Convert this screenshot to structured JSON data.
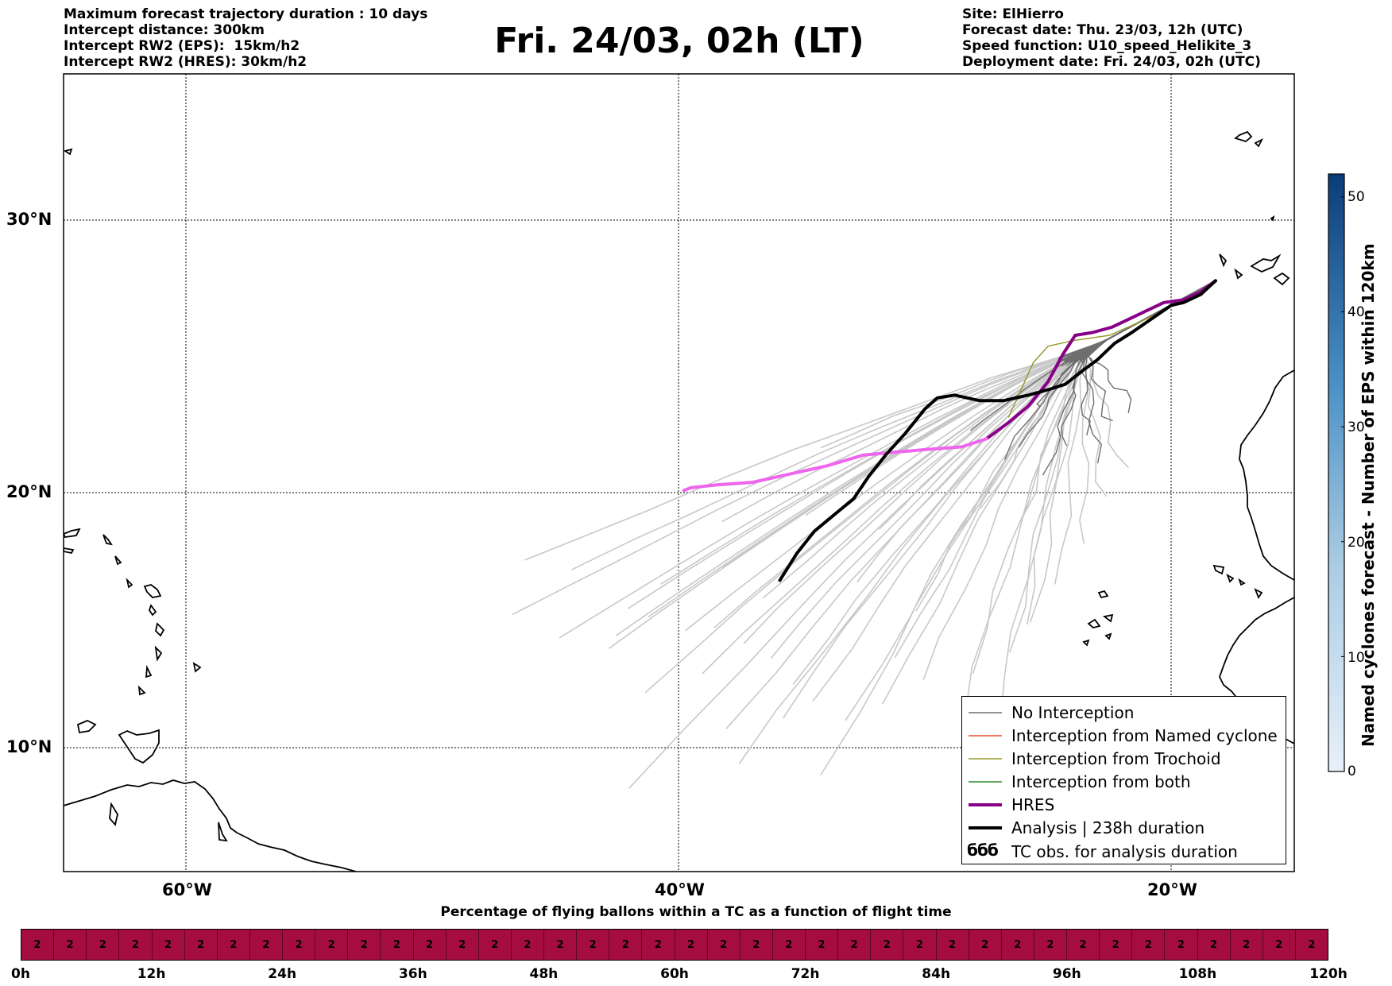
{
  "header": {
    "left_lines": [
      "Maximum forecast trajectory duration : 10 days",
      "Intercept distance: 300km",
      "Intercept RW2 (EPS):  15km/h2",
      "Intercept RW2 (HRES): 30km/h2"
    ],
    "title": "Fri. 24/03, 02h (LT)",
    "right_lines": [
      "Site: ElHierro",
      "Forecast date: Thu. 23/03, 12h (UTC)",
      "Speed function: U10_speed_Helikite_3",
      "Deployment date: Fri. 24/03, 02h (UTC)"
    ]
  },
  "map": {
    "lat_labels": [
      "30°N",
      "20°N",
      "10°N"
    ],
    "lon_labels": [
      "60°W",
      "40°W",
      "20°W"
    ],
    "lon_range": [
      -65,
      -15
    ],
    "lat_range": [
      5.5,
      34.8
    ],
    "colors": {
      "ensemble_light": "#c8c8c8",
      "ensemble_dark": "#6e6e6e",
      "trochoid": "#9a9a30",
      "hres_light": "#ee66ee",
      "hres_dark": "#880088",
      "analysis": "#000000"
    },
    "analysis_track": [
      [
        -18.2,
        27.2
      ],
      [
        -18.8,
        26.7
      ],
      [
        -19.5,
        26.4
      ],
      [
        -20.0,
        26.3
      ],
      [
        -20.8,
        25.8
      ],
      [
        -21.6,
        25.3
      ],
      [
        -22.3,
        24.9
      ],
      [
        -23.0,
        24.3
      ],
      [
        -23.6,
        23.9
      ],
      [
        -24.3,
        23.4
      ],
      [
        -25.0,
        23.2
      ],
      [
        -25.8,
        23.0
      ],
      [
        -26.8,
        22.8
      ],
      [
        -27.8,
        22.8
      ],
      [
        -28.8,
        23.0
      ],
      [
        -29.5,
        22.9
      ],
      [
        -30.0,
        22.5
      ],
      [
        -30.8,
        21.6
      ],
      [
        -31.6,
        20.8
      ],
      [
        -32.3,
        20.0
      ],
      [
        -32.9,
        19.2
      ],
      [
        -33.7,
        18.6
      ],
      [
        -34.5,
        18.0
      ],
      [
        -35.2,
        17.2
      ],
      [
        -35.9,
        16.2
      ]
    ],
    "hres_track": [
      [
        -18.2,
        27.2
      ],
      [
        -18.8,
        26.8
      ],
      [
        -19.5,
        26.5
      ],
      [
        -20.3,
        26.4
      ],
      [
        -21.0,
        26.1
      ],
      [
        -21.7,
        25.8
      ],
      [
        -22.4,
        25.5
      ],
      [
        -23.2,
        25.3
      ],
      [
        -23.9,
        25.2
      ],
      [
        -24.4,
        24.5
      ],
      [
        -25.0,
        23.5
      ],
      [
        -25.8,
        22.6
      ],
      [
        -26.6,
        22.0
      ],
      [
        -27.5,
        21.4
      ],
      [
        -28.5,
        21.1
      ],
      [
        -30.0,
        21.0
      ],
      [
        -31.3,
        20.9
      ],
      [
        -32.5,
        20.8
      ],
      [
        -34.0,
        20.4
      ],
      [
        -35.5,
        20.1
      ],
      [
        -37.0,
        19.8
      ],
      [
        -38.5,
        19.7
      ],
      [
        -39.5,
        19.6
      ],
      [
        -39.8,
        19.5
      ]
    ],
    "ensemble_ends": [
      [
        -46.5,
        16.8
      ],
      [
        -44.5,
        16.5
      ],
      [
        -42.0,
        15.2
      ],
      [
        -41.0,
        15.0
      ],
      [
        -39.5,
        14.5
      ],
      [
        -38.5,
        14.5
      ],
      [
        -37.5,
        13.8
      ],
      [
        -36.5,
        13.2
      ],
      [
        -35.5,
        12.3
      ],
      [
        -34.5,
        11.8
      ],
      [
        -33.0,
        11.2
      ],
      [
        -31.5,
        11.8
      ],
      [
        -30.0,
        12.6
      ],
      [
        -28.5,
        11.3
      ],
      [
        -27.2,
        10.7
      ],
      [
        -28.2,
        12.7
      ],
      [
        -26.5,
        13.6
      ],
      [
        -25.5,
        14.8
      ],
      [
        -24.5,
        16.2
      ],
      [
        -23.5,
        17.6
      ],
      [
        -22.8,
        19.2
      ],
      [
        -22.0,
        20.2
      ],
      [
        -26.0,
        14.5
      ],
      [
        -36.5,
        15.6
      ],
      [
        -38.0,
        16.8
      ],
      [
        -40.5,
        16.2
      ],
      [
        -42.5,
        14.2
      ],
      [
        -45.0,
        14.0
      ],
      [
        -47.0,
        14.8
      ],
      [
        -41.5,
        12.0
      ],
      [
        -38.0,
        10.8
      ],
      [
        -34.0,
        9.2
      ],
      [
        -41.8,
        8.7
      ],
      [
        -37.5,
        9.5
      ],
      [
        -35.0,
        18.5
      ],
      [
        -33.0,
        16.0
      ],
      [
        -30.5,
        15.0
      ],
      [
        -29.0,
        17.5
      ],
      [
        -27.5,
        19.0
      ],
      [
        -31.0,
        13.5
      ],
      [
        -39.0,
        12.8
      ],
      [
        -43.0,
        13.6
      ],
      [
        -36.0,
        11.0
      ],
      [
        -32.0,
        18.0
      ],
      [
        -26.0,
        18.5
      ],
      [
        -38.0,
        18.5
      ],
      [
        -34.0,
        21.2
      ]
    ],
    "ensemble_dark_ends": [
      [
        -24.5,
        21.0
      ],
      [
        -23.5,
        21.5
      ],
      [
        -25.0,
        20.2
      ],
      [
        -26.0,
        21.2
      ],
      [
        -22.5,
        22.0
      ],
      [
        -27.0,
        20.5
      ],
      [
        -23.0,
        20.5
      ],
      [
        -21.5,
        22.5
      ],
      [
        -28.0,
        21.8
      ],
      [
        -25.5,
        22.5
      ]
    ]
  },
  "legend": {
    "items": [
      {
        "label": "No Interception",
        "color": "#6e6e6e",
        "style": "thin"
      },
      {
        "label": "Interception from Named cyclone",
        "color": "#e8502a",
        "style": "thin"
      },
      {
        "label": "Interception from Trochoid",
        "color": "#9a9a30",
        "style": "thin"
      },
      {
        "label": "Interception from both",
        "color": "#2a8a2a",
        "style": "thin"
      },
      {
        "label": "HRES",
        "color": "#880088",
        "style": "thick"
      },
      {
        "label": "Analysis | 238h duration",
        "color": "#000000",
        "style": "thick"
      },
      {
        "label": "TC obs. for analysis duration",
        "color": "#000000",
        "style": "symbol",
        "symbol": "ббб"
      }
    ]
  },
  "colorbar": {
    "label": "Named cyclones forecast - Number of EPS within 120km",
    "ticks": [
      "50",
      "40",
      "30",
      "20",
      "10",
      "0"
    ],
    "min": 0,
    "max": 52,
    "colors": [
      "#e8f0fa",
      "#0b3c7a"
    ]
  },
  "strip": {
    "caption": "Percentage of flying ballons within a TC as a function of flight time",
    "cell_value": "2",
    "cell_count": 40,
    "time_labels": [
      "0h",
      "12h",
      "24h",
      "36h",
      "48h",
      "60h",
      "72h",
      "84h",
      "96h",
      "108h",
      "120h"
    ]
  }
}
